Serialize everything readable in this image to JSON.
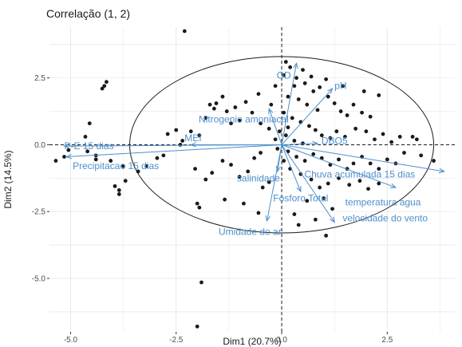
{
  "chart_data": {
    "type": "scatter",
    "title": "Correlação (1, 2)",
    "xlabel": "Dim1 (20.7%)",
    "ylabel": "Dim2 (14.5%)",
    "xlim": [
      -5.5,
      4.1
    ],
    "ylim": [
      -7.0,
      4.4
    ],
    "x_ticks": [
      -5.0,
      -2.5,
      0.0,
      2.5
    ],
    "y_ticks": [
      -5.0,
      -2.5,
      0.0,
      2.5
    ],
    "x_tick_labels": [
      "-5.0",
      "-2.5",
      "0.0",
      "2.5"
    ],
    "y_tick_labels": [
      "-5.0",
      "-2.5",
      "0.0",
      "2.5"
    ],
    "grid": true,
    "colors": {
      "points": "#1a1a1a",
      "arrows": "#4d8fcc",
      "labels": "#4d8fcc",
      "grid": "#e6e6e6",
      "circle": "#1a1a1a"
    },
    "circle": {
      "cx": 0.0,
      "cy": 0.0,
      "rx": 3.6,
      "ry": 3.3
    },
    "points": [
      [
        -5.35,
        -0.6
      ],
      [
        -5.15,
        -0.45
      ],
      [
        -5.05,
        -0.2
      ],
      [
        -4.65,
        0.3
      ],
      [
        -4.6,
        -0.25
      ],
      [
        -4.4,
        -0.55
      ],
      [
        -4.05,
        -0.6
      ],
      [
        -4.55,
        0.8
      ],
      [
        -4.2,
        2.2
      ],
      [
        -4.15,
        2.35
      ],
      [
        -4.25,
        2.1
      ],
      [
        -4.4,
        -0.4
      ],
      [
        -3.95,
        -1.55
      ],
      [
        -3.85,
        -1.7
      ],
      [
        -3.85,
        -1.85
      ],
      [
        -3.7,
        -1.35
      ],
      [
        -3.75,
        -0.8
      ],
      [
        -3.4,
        -1.0
      ],
      [
        -3.2,
        -0.8
      ],
      [
        -2.95,
        -0.5
      ],
      [
        -2.8,
        -0.4
      ],
      [
        -2.3,
        4.25
      ],
      [
        -2.4,
        0.0
      ],
      [
        -2.35,
        0.15
      ],
      [
        -2.5,
        0.55
      ],
      [
        -2.7,
        0.4
      ],
      [
        -2.15,
        0.5
      ],
      [
        -1.95,
        0.35
      ],
      [
        -1.8,
        1.0
      ],
      [
        -1.6,
        1.35
      ],
      [
        -1.55,
        1.55
      ],
      [
        -1.4,
        1.8
      ],
      [
        -1.7,
        1.5
      ],
      [
        -1.3,
        1.25
      ],
      [
        -1.2,
        0.8
      ],
      [
        -1.0,
        0.9
      ],
      [
        -1.1,
        1.4
      ],
      [
        -0.85,
        1.6
      ],
      [
        -0.7,
        1.2
      ],
      [
        -0.5,
        0.8
      ],
      [
        -0.3,
        0.6
      ],
      [
        -0.55,
        1.9
      ],
      [
        -0.25,
        1.5
      ],
      [
        -0.15,
        0.2
      ],
      [
        -2.05,
        -0.9
      ],
      [
        -1.8,
        -1.3
      ],
      [
        -1.65,
        -1.05
      ],
      [
        -1.4,
        -0.6
      ],
      [
        -1.2,
        -0.75
      ],
      [
        -1.0,
        -1.2
      ],
      [
        -0.8,
        -1.0
      ],
      [
        -0.65,
        -0.5
      ],
      [
        -0.5,
        -0.3
      ],
      [
        -0.45,
        -1.6
      ],
      [
        -0.3,
        -1.4
      ],
      [
        -1.35,
        -2.05
      ],
      [
        -1.95,
        -2.35
      ],
      [
        -2.0,
        -2.2
      ],
      [
        -0.9,
        -2.2
      ],
      [
        -0.55,
        -2.55
      ],
      [
        -1.9,
        -5.15
      ],
      [
        -2.0,
        -6.8
      ],
      [
        0.1,
        3.1
      ],
      [
        0.2,
        2.9
      ],
      [
        0.35,
        2.5
      ],
      [
        0.5,
        2.8
      ],
      [
        0.55,
        2.3
      ],
      [
        0.75,
        2.0
      ],
      [
        0.9,
        2.15
      ],
      [
        1.05,
        2.45
      ],
      [
        0.3,
        2.2
      ],
      [
        0.15,
        1.8
      ],
      [
        0.4,
        1.7
      ],
      [
        0.6,
        1.5
      ],
      [
        0.85,
        1.3
      ],
      [
        1.1,
        1.8
      ],
      [
        1.25,
        1.55
      ],
      [
        1.4,
        1.25
      ],
      [
        1.55,
        1.1
      ],
      [
        1.7,
        1.5
      ],
      [
        1.9,
        1.2
      ],
      [
        2.1,
        1.05
      ],
      [
        0.05,
        1.2
      ],
      [
        0.25,
        1.0
      ],
      [
        0.45,
        0.85
      ],
      [
        0.65,
        0.7
      ],
      [
        0.8,
        0.55
      ],
      [
        0.95,
        0.35
      ],
      [
        1.15,
        0.25
      ],
      [
        1.3,
        0.5
      ],
      [
        1.5,
        0.3
      ],
      [
        1.75,
        0.6
      ],
      [
        2.0,
        0.5
      ],
      [
        2.2,
        0.2
      ],
      [
        2.4,
        0.4
      ],
      [
        2.6,
        0.1
      ],
      [
        2.8,
        0.3
      ],
      [
        3.1,
        0.3
      ],
      [
        3.2,
        0.2
      ],
      [
        3.6,
        -0.6
      ],
      [
        3.3,
        -0.4
      ],
      [
        2.9,
        -0.3
      ],
      [
        2.7,
        -0.7
      ],
      [
        2.5,
        -0.55
      ],
      [
        2.3,
        -0.9
      ],
      [
        2.1,
        -0.7
      ],
      [
        1.9,
        -0.45
      ],
      [
        1.7,
        -0.7
      ],
      [
        1.55,
        -0.9
      ],
      [
        1.35,
        -0.55
      ],
      [
        1.15,
        -0.75
      ],
      [
        0.95,
        -0.5
      ],
      [
        0.75,
        -0.35
      ],
      [
        0.55,
        -0.6
      ],
      [
        0.35,
        -0.45
      ],
      [
        0.15,
        -0.25
      ],
      [
        0.05,
        -0.6
      ],
      [
        0.2,
        -0.9
      ],
      [
        0.45,
        -1.1
      ],
      [
        0.7,
        -1.3
      ],
      [
        0.9,
        -1.6
      ],
      [
        1.1,
        -1.45
      ],
      [
        1.35,
        -1.25
      ],
      [
        1.6,
        -1.5
      ],
      [
        1.85,
        -1.35
      ],
      [
        2.05,
        -1.65
      ],
      [
        2.3,
        -1.45
      ],
      [
        1.0,
        -2.0
      ],
      [
        1.2,
        -2.4
      ],
      [
        0.6,
        -2.1
      ],
      [
        0.3,
        -2.6
      ],
      [
        0.8,
        -2.8
      ],
      [
        1.05,
        -3.4
      ],
      [
        0.4,
        -3.0
      ],
      [
        -0.1,
        -0.15
      ],
      [
        0.1,
        0.35
      ],
      [
        0.3,
        0.15
      ],
      [
        0.5,
        0.05
      ],
      [
        -0.05,
        0.5
      ],
      [
        0.15,
        0.65
      ],
      [
        1.95,
        2.0
      ],
      [
        2.3,
        1.85
      ],
      [
        1.45,
        2.2
      ],
      [
        0.7,
        2.55
      ],
      [
        0.05,
        2.6
      ],
      [
        -0.15,
        2.2
      ]
    ],
    "arrows": [
      {
        "label": "OD",
        "x": 0.35,
        "y": 3.05,
        "lx": 0.05,
        "ly": 2.6,
        "anchor": "middle"
      },
      {
        "label": "pH",
        "x": 1.2,
        "y": 2.1,
        "lx": 1.25,
        "ly": 2.2,
        "anchor": "start"
      },
      {
        "label": "Nitrogenio amoniacal",
        "x": -0.3,
        "y": 1.35,
        "lx": -0.9,
        "ly": 0.95,
        "anchor": "middle"
      },
      {
        "label": "MEI",
        "x": -2.15,
        "y": 0.0,
        "lx": -2.1,
        "ly": 0.25,
        "anchor": "middle"
      },
      {
        "label": "P-E 15 dias",
        "x": -5.15,
        "y": -0.05,
        "lx": -5.15,
        "ly": -0.05,
        "anchor": "start"
      },
      {
        "label": "Precipitacao 15 dias",
        "x": -5.1,
        "y": -0.45,
        "lx": -4.95,
        "ly": -0.8,
        "anchor": "start"
      },
      {
        "label": "DBO5",
        "x": 0.85,
        "y": 0.05,
        "lx": 1.25,
        "ly": 0.15,
        "anchor": "middle"
      },
      {
        "label": "Chuva acumulada 15 dias",
        "x": 3.85,
        "y": -1.0,
        "lx": 1.85,
        "ly": -1.1,
        "anchor": "middle"
      },
      {
        "label": "salinidade",
        "x": -0.1,
        "y": -1.0,
        "lx": -0.55,
        "ly": -1.25,
        "anchor": "middle"
      },
      {
        "label": "Fosforo Total",
        "x": 0.45,
        "y": -1.75,
        "lx": 0.45,
        "ly": -2.0,
        "anchor": "middle"
      },
      {
        "label": "temperatura agua",
        "x": 2.7,
        "y": -1.6,
        "lx": 2.4,
        "ly": -2.15,
        "anchor": "middle"
      },
      {
        "label": "velocidade do vento",
        "x": 1.25,
        "y": -2.9,
        "lx": 2.45,
        "ly": -2.75,
        "anchor": "middle"
      },
      {
        "label": "Umidade do ar",
        "x": -0.35,
        "y": -2.85,
        "lx": -0.75,
        "ly": -3.25,
        "anchor": "middle"
      }
    ]
  }
}
